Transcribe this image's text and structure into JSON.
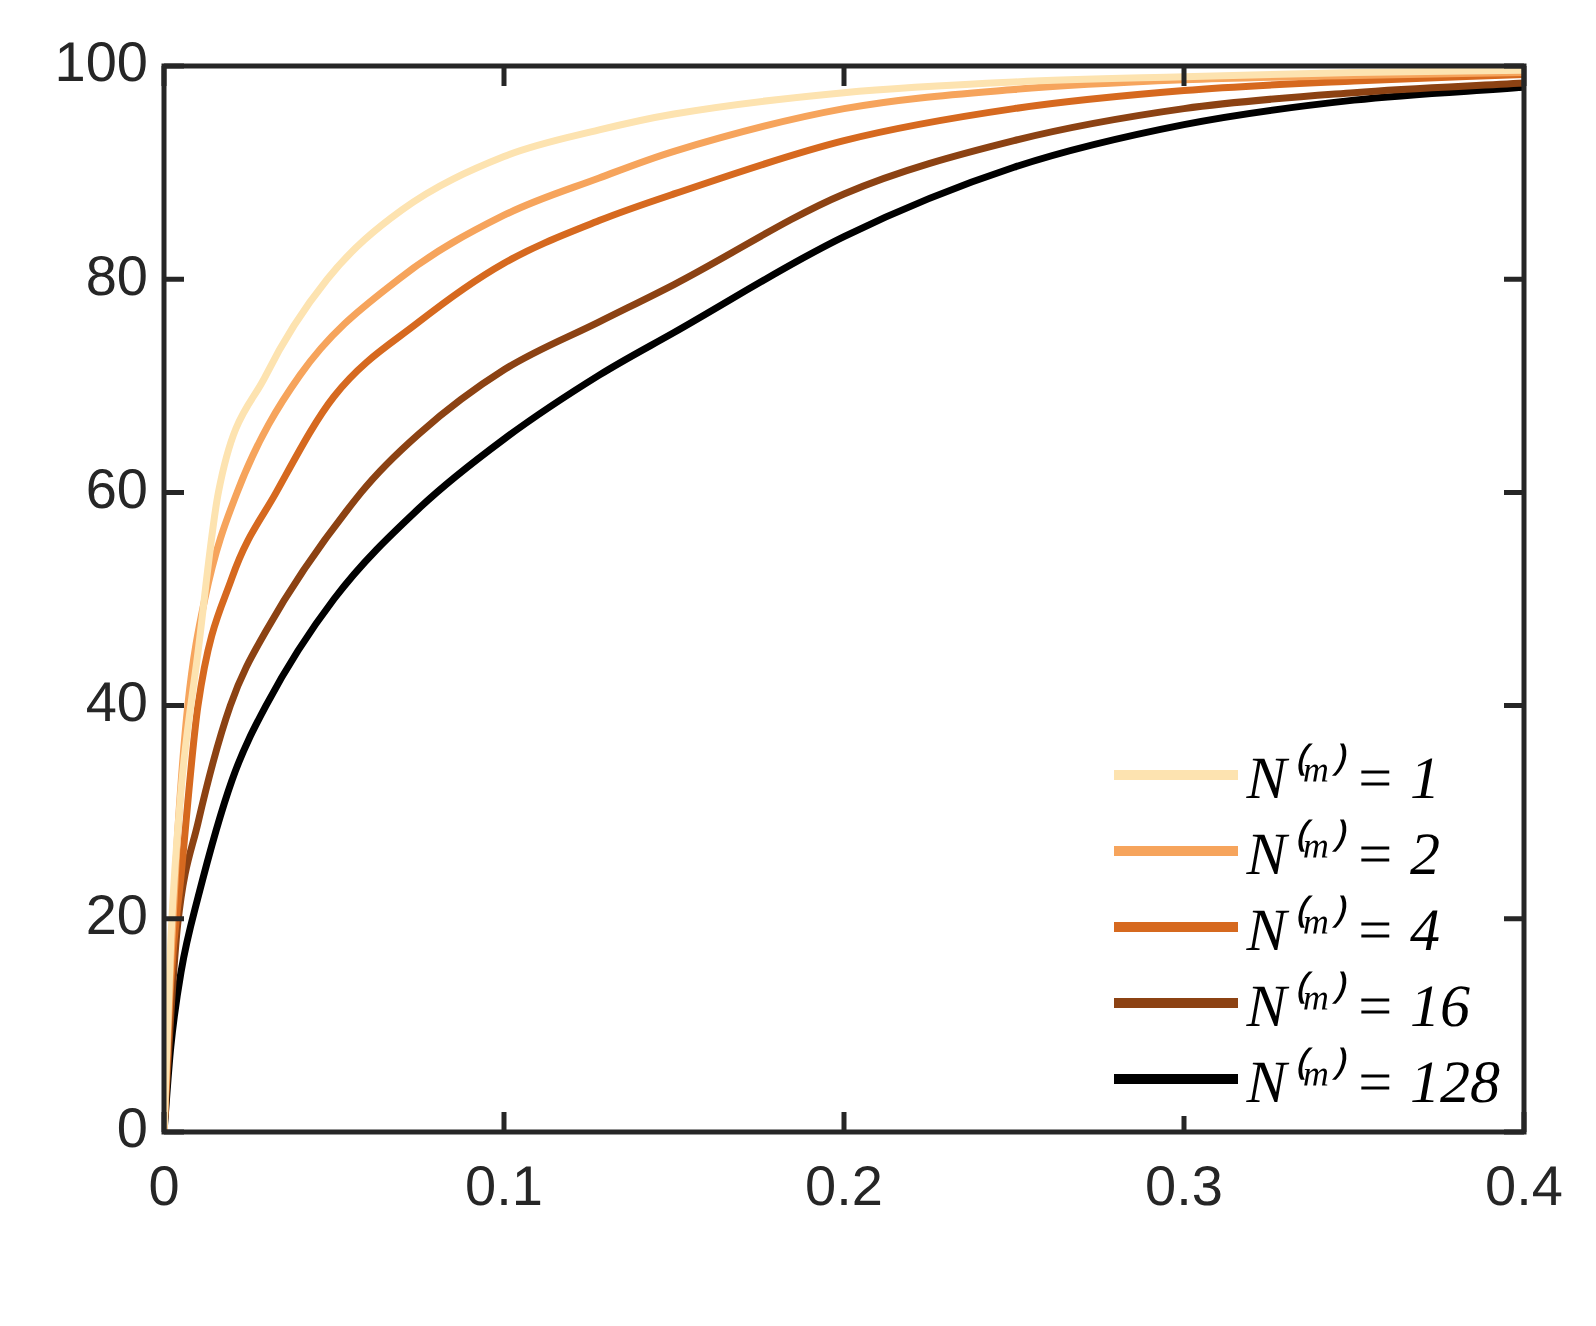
{
  "chart_data": {
    "type": "line",
    "xlim": [
      0,
      0.4
    ],
    "xticks": [
      0,
      0.1,
      0.2,
      0.3,
      0.4
    ],
    "ylim": [
      0,
      100
    ],
    "yticks": [
      0,
      20,
      40,
      60,
      80,
      100
    ],
    "grid": false,
    "legend": "bottom right",
    "marker": "none",
    "line_style": "solid",
    "series": [
      {
        "name": "N⁽ᵐ⁾ = 1",
        "color": "#fde3b0",
        "x": [
          0,
          0.002,
          0.005,
          0.01,
          0.016,
          0.03,
          0.048,
          0.07,
          0.1,
          0.128,
          0.15,
          0.2,
          0.25,
          0.3,
          0.35,
          0.4
        ],
        "values": [
          0,
          18,
          32,
          45,
          60,
          71,
          80,
          86.5,
          91.5,
          94,
          95.5,
          97.5,
          98.5,
          99,
          99.4,
          99.6
        ]
      },
      {
        "name": "N⁽ᵐ⁾ = 2",
        "color": "#f6a45c",
        "x": [
          0,
          0.002,
          0.004,
          0.007,
          0.012,
          0.0215,
          0.04,
          0.069,
          0.1,
          0.128,
          0.15,
          0.2,
          0.25,
          0.3,
          0.35,
          0.4
        ],
        "values": [
          0,
          16,
          28,
          40,
          50,
          60,
          71,
          80,
          86,
          89.5,
          92,
          96,
          97.8,
          98.7,
          99.1,
          99.4
        ]
      },
      {
        "name": "N⁽ᵐ⁾ = 4",
        "color": "#d6691f",
        "x": [
          0,
          0.002,
          0.005,
          0.01,
          0.02,
          0.033,
          0.05,
          0.075,
          0.1,
          0.128,
          0.15,
          0.2,
          0.25,
          0.3,
          0.35,
          0.4
        ],
        "values": [
          0,
          14,
          24,
          40,
          52,
          60,
          69,
          76,
          81.5,
          85.5,
          88,
          93,
          96,
          97.7,
          98.6,
          99.2
        ]
      },
      {
        "name": "N⁽ᵐ⁾ = 16",
        "color": "#8c4213",
        "x": [
          0,
          0.002,
          0.004,
          0.01,
          0.0195,
          0.03,
          0.058,
          0.075,
          0.1,
          0.128,
          0.15,
          0.2,
          0.25,
          0.3,
          0.35,
          0.4
        ],
        "values": [
          0,
          11,
          19.4,
          29,
          40,
          47,
          60,
          65.5,
          71.5,
          76,
          79.5,
          88,
          93,
          96,
          97.5,
          98.4
        ]
      },
      {
        "name": "N⁽ᵐ⁾ = 128",
        "color": "#000000",
        "x": [
          0,
          0.002,
          0.005,
          0.01,
          0.02,
          0.03,
          0.05,
          0.075,
          0.1,
          0.128,
          0.15,
          0.2,
          0.25,
          0.3,
          0.35,
          0.4
        ],
        "values": [
          0,
          8,
          15,
          22,
          33,
          40,
          50,
          58.5,
          65,
          71,
          75,
          84,
          90.5,
          94.5,
          96.8,
          98
        ]
      }
    ]
  }
}
